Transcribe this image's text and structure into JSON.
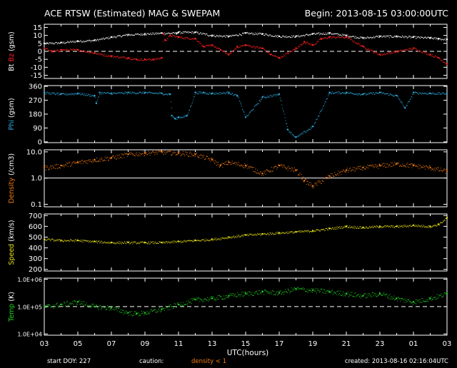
{
  "header": {
    "title": "ACE RTSW (Estimated) MAG & SWEPAM",
    "begin": "Begin: 2013-08-15 03:00:00UTC"
  },
  "footer": {
    "start_doy": "start DOY: 227",
    "caution": "caution:",
    "density_note": "density < 1",
    "created": "created: 2013-08-16 02:16:04UTC"
  },
  "colors": {
    "background": "#000000",
    "axes": "#ffffff",
    "bt": "#ffffff",
    "bz": "#ff2020",
    "phi": "#2aa8d8",
    "density": "#f07a10",
    "speed": "#e8e010",
    "temp": "#20d020"
  },
  "chart_data": [
    {
      "type": "scatter",
      "ylabel_parts": [
        {
          "text": "Bt",
          "color": "#ffffff"
        },
        {
          "text": "Bz",
          "color": "#ff2020"
        },
        {
          "text": "(gsm)",
          "color": "#ffffff"
        }
      ],
      "yticks": [
        "15",
        "10",
        "5",
        "0",
        "-5",
        "-10",
        "-15"
      ],
      "ylim": [
        -17,
        17
      ],
      "refline": 0,
      "series": [
        {
          "color": "#ffffff",
          "x": [
            0,
            1,
            2,
            3,
            4,
            5,
            6,
            7,
            7.9,
            8,
            9,
            10,
            11,
            12,
            13,
            14,
            15,
            16,
            17,
            18,
            19,
            20,
            21,
            22,
            23,
            23.5,
            24
          ],
          "y": [
            5,
            5.5,
            6.5,
            7,
            9,
            10.5,
            11,
            11.5,
            11.5,
            12,
            12,
            10,
            9.5,
            11.5,
            11,
            9.5,
            9.5,
            11,
            11.5,
            10,
            8.5,
            9.5,
            9.5,
            9,
            8.5,
            8,
            7.5
          ]
        },
        {
          "color": "#ff2020",
          "x": [
            0,
            0.5,
            1,
            2,
            3,
            4,
            5,
            5.5,
            6,
            6.5,
            7,
            7.1,
            7.2,
            7.5,
            8,
            9,
            9.5,
            10,
            10.5,
            11,
            11.5,
            12,
            13,
            13.5,
            14,
            15,
            15.5,
            16,
            16.5,
            17,
            18,
            19,
            20,
            21,
            22,
            23,
            23.5,
            24
          ],
          "y": [
            2,
            0,
            1,
            1,
            -1,
            -3,
            -4,
            -5,
            -5,
            -5,
            -4,
            11,
            7,
            10,
            9,
            8,
            3,
            4,
            1,
            -2,
            3,
            4,
            2,
            -2,
            -4,
            2,
            6,
            4,
            8,
            9,
            9,
            3,
            -2,
            0,
            2,
            -2,
            -4,
            -8
          ]
        }
      ]
    },
    {
      "type": "scatter",
      "ylabel_parts": [
        {
          "text": "Phi",
          "color": "#2aa8d8"
        },
        {
          "text": "(gsm)",
          "color": "#ffffff"
        }
      ],
      "yticks": [
        "360",
        "270",
        "180",
        "90",
        "0"
      ],
      "ylim": [
        -5,
        365
      ],
      "series": [
        {
          "color": "#2aa8d8",
          "x": [
            0,
            1,
            2,
            3,
            3.1,
            3.3,
            4,
            5,
            6,
            7,
            7.5,
            7.6,
            7.8,
            8,
            8.5,
            9,
            9.5,
            10,
            11,
            11.5,
            12,
            13,
            14,
            14.5,
            15,
            16,
            17,
            18,
            19,
            20,
            21,
            21.5,
            22,
            23,
            24
          ],
          "y": [
            320,
            310,
            315,
            300,
            250,
            320,
            315,
            320,
            320,
            315,
            310,
            170,
            150,
            160,
            170,
            320,
            320,
            315,
            320,
            300,
            160,
            290,
            310,
            80,
            30,
            100,
            320,
            320,
            310,
            320,
            300,
            220,
            320,
            315,
            315
          ]
        }
      ]
    },
    {
      "type": "scatter",
      "ylabel_parts": [
        {
          "text": "Density",
          "color": "#f07a10"
        },
        {
          "text": "(/cm3)",
          "color": "#ffffff"
        }
      ],
      "yticks": [
        "10.0",
        "1.0",
        "0.1"
      ],
      "log": true,
      "ylim": [
        0.08,
        12
      ],
      "refline": 1,
      "series": [
        {
          "color": "#f07a10",
          "x": [
            0,
            1,
            2,
            3,
            4,
            5,
            6,
            7,
            8,
            9,
            10,
            10.5,
            11,
            12,
            13,
            14,
            15,
            15.5,
            16,
            17,
            18,
            19,
            20,
            21,
            22,
            23,
            24
          ],
          "y": [
            2.5,
            3,
            4,
            5,
            6,
            8,
            9,
            10,
            9,
            8,
            5,
            3,
            4,
            3,
            1.5,
            3,
            2,
            0.8,
            0.5,
            1.2,
            2,
            2.5,
            3,
            3.5,
            3,
            2.5,
            1.8
          ]
        }
      ]
    },
    {
      "type": "scatter",
      "ylabel_parts": [
        {
          "text": "Speed",
          "color": "#e8e010"
        },
        {
          "text": "(km/s)",
          "color": "#ffffff"
        }
      ],
      "yticks": [
        "700",
        "600",
        "500",
        "400",
        "300",
        "200"
      ],
      "ylim": [
        185,
        715
      ],
      "series": [
        {
          "color": "#e8e010",
          "x": [
            0,
            1,
            2,
            3,
            4,
            5,
            6,
            7,
            8,
            9,
            10,
            11,
            12,
            13,
            14,
            15,
            16,
            17,
            18,
            19,
            20,
            21,
            22,
            23,
            23.5,
            24
          ],
          "y": [
            480,
            470,
            470,
            460,
            450,
            450,
            450,
            450,
            460,
            470,
            480,
            500,
            520,
            530,
            540,
            550,
            560,
            580,
            600,
            590,
            600,
            600,
            610,
            600,
            620,
            680
          ]
        }
      ]
    },
    {
      "type": "scatter",
      "ylabel_parts": [
        {
          "text": "Temp",
          "color": "#20d020"
        },
        {
          "text": "(K)",
          "color": "#ffffff"
        }
      ],
      "yticks": [
        "1.0E+06",
        "1.0E+05",
        "1.0E+04"
      ],
      "log": true,
      "ylim": [
        9000,
        1100000
      ],
      "refline": 100000,
      "series": [
        {
          "color": "#20d020",
          "x": [
            0,
            1,
            2,
            3,
            4,
            5,
            5.5,
            6,
            7,
            8,
            9,
            10,
            11,
            12,
            13,
            14,
            15,
            16,
            17,
            18,
            19,
            20,
            21,
            22,
            23,
            24
          ],
          "y": [
            100000,
            120000,
            150000,
            100000,
            90000,
            60000,
            55000,
            60000,
            80000,
            120000,
            180000,
            200000,
            250000,
            300000,
            350000,
            320000,
            450000,
            400000,
            350000,
            300000,
            250000,
            300000,
            200000,
            150000,
            200000,
            300000
          ]
        }
      ]
    }
  ],
  "xaxis": {
    "label": "UTC(hours)",
    "ticks": [
      "03",
      "05",
      "07",
      "09",
      "11",
      "13",
      "15",
      "17",
      "19",
      "21",
      "23",
      "01",
      "03"
    ],
    "xlim": [
      0,
      24
    ]
  }
}
